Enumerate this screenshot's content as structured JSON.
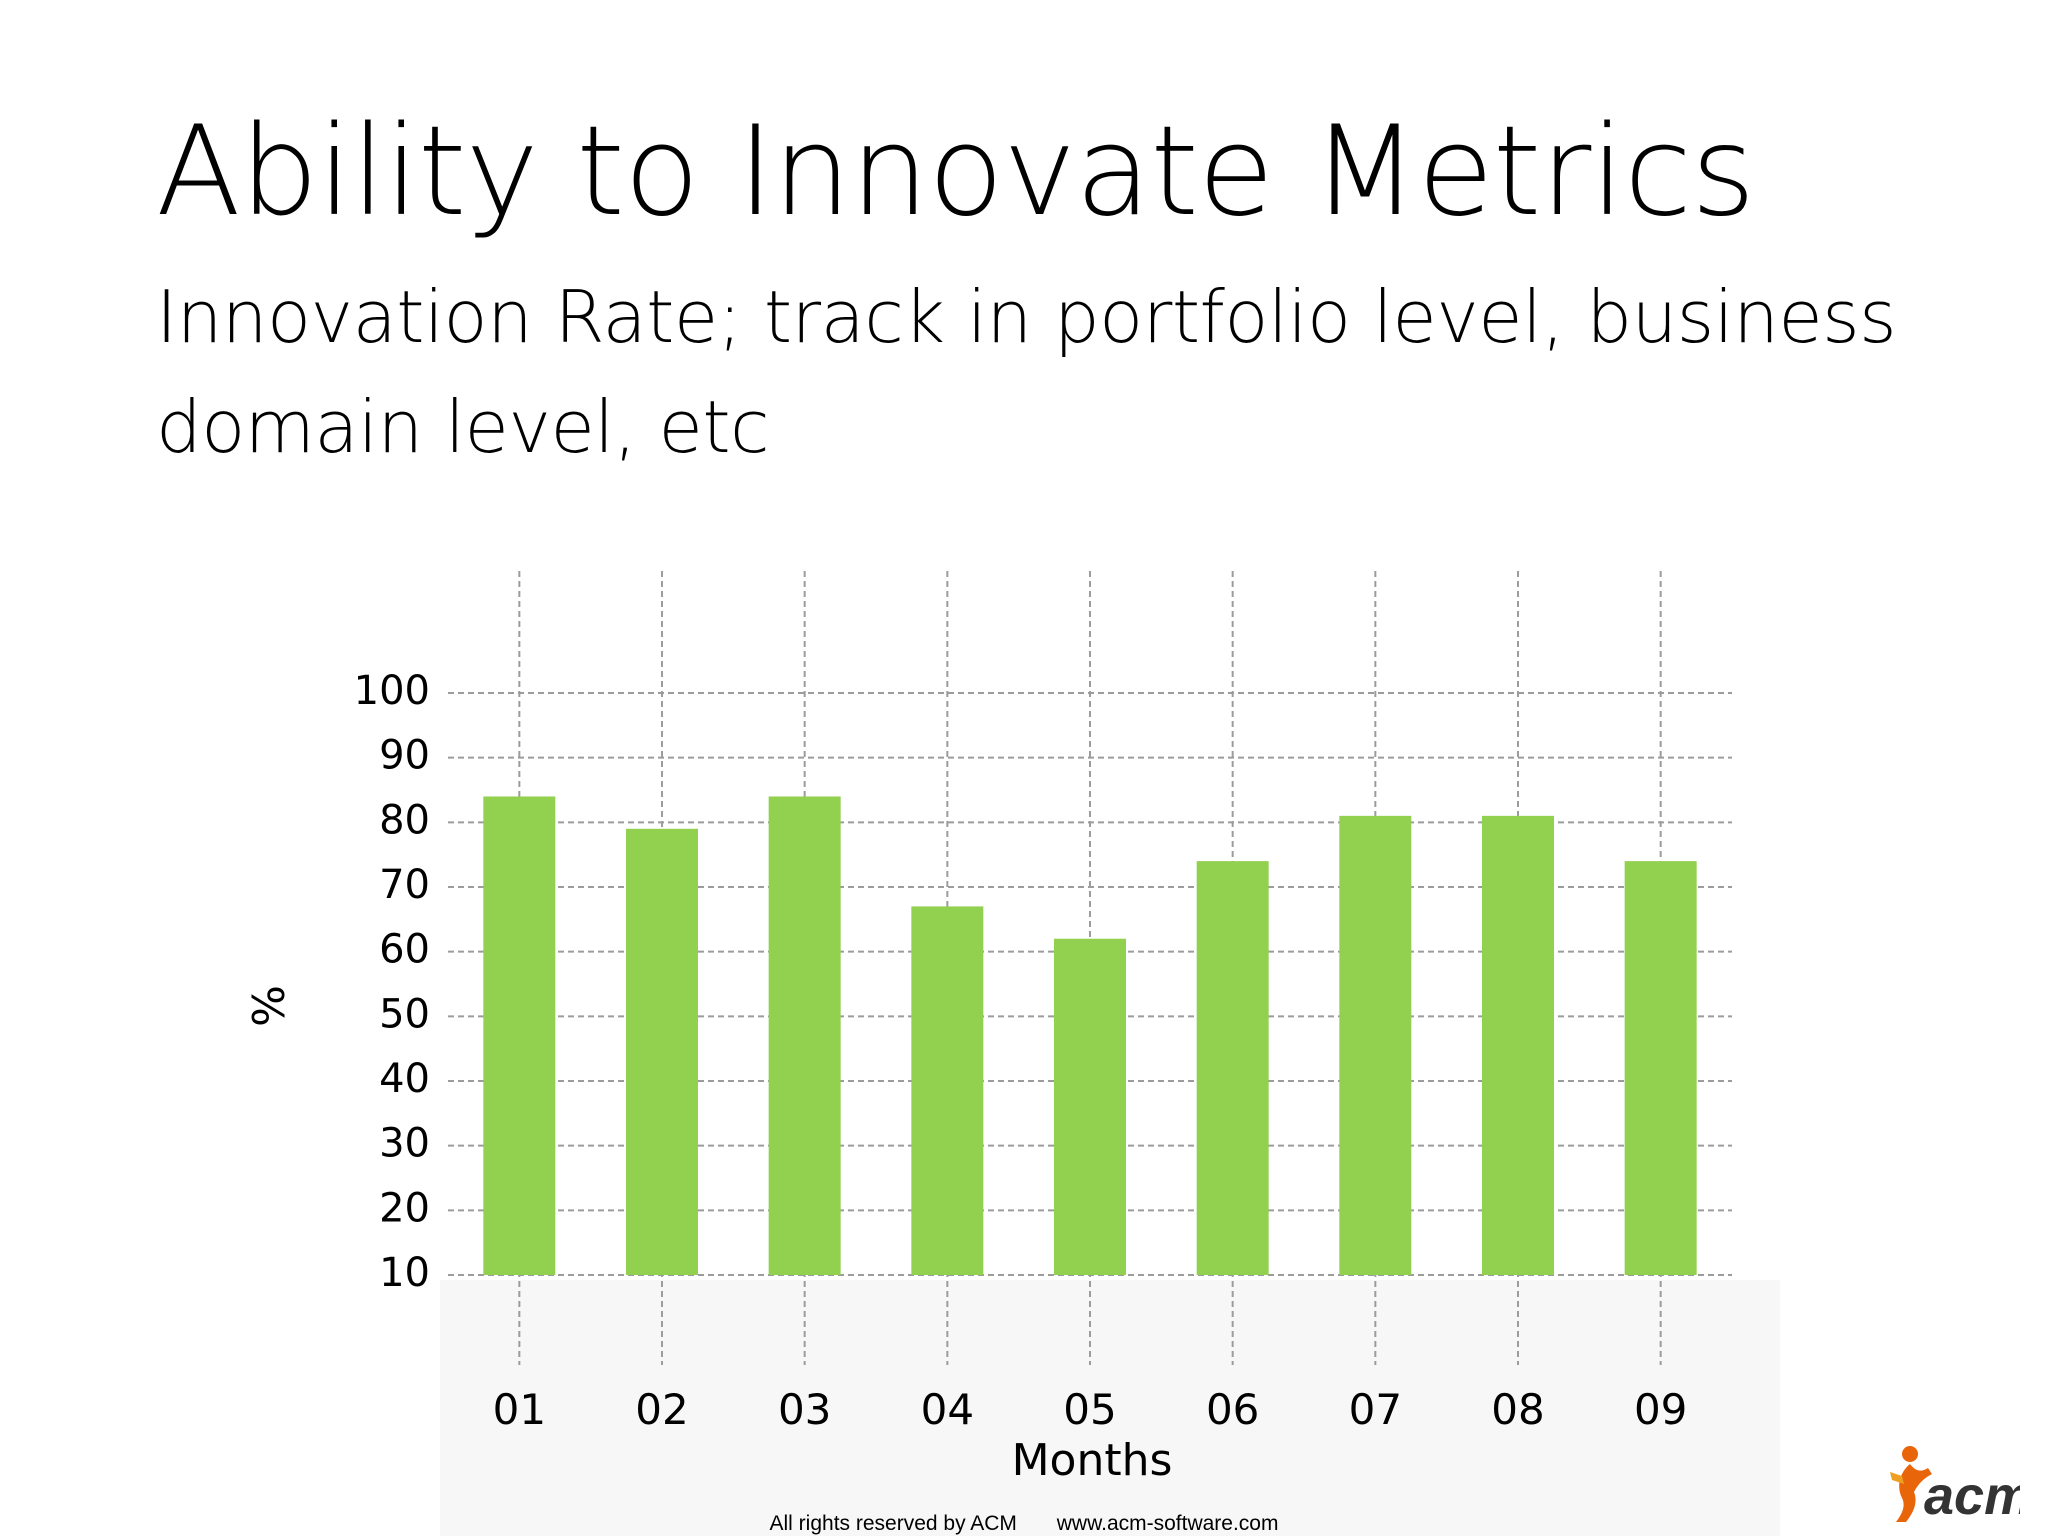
{
  "slide": {
    "title": "Ability to Innovate Metrics",
    "subtitle": "Innovation Rate; track in portfolio level, business domain level, etc"
  },
  "chart_data": {
    "type": "bar",
    "categories": [
      "01",
      "02",
      "03",
      "04",
      "05",
      "06",
      "07",
      "08",
      "09"
    ],
    "values": [
      84,
      79,
      84,
      67,
      62,
      74,
      81,
      81,
      74
    ],
    "xlabel": "Months",
    "ylabel": "%",
    "yticks": [
      10,
      20,
      30,
      40,
      50,
      60,
      70,
      80,
      90,
      100
    ],
    "ylim": [
      10,
      100
    ],
    "grid": true,
    "bar_color": "#92d050",
    "grid_color": "#9c9c9c"
  },
  "footer": {
    "rights": "All rights reserved by ACM",
    "website": "www.acm-software.com"
  },
  "logo": {
    "text": "acm",
    "text_color": "#333333",
    "figure_color": "#e8650a"
  }
}
